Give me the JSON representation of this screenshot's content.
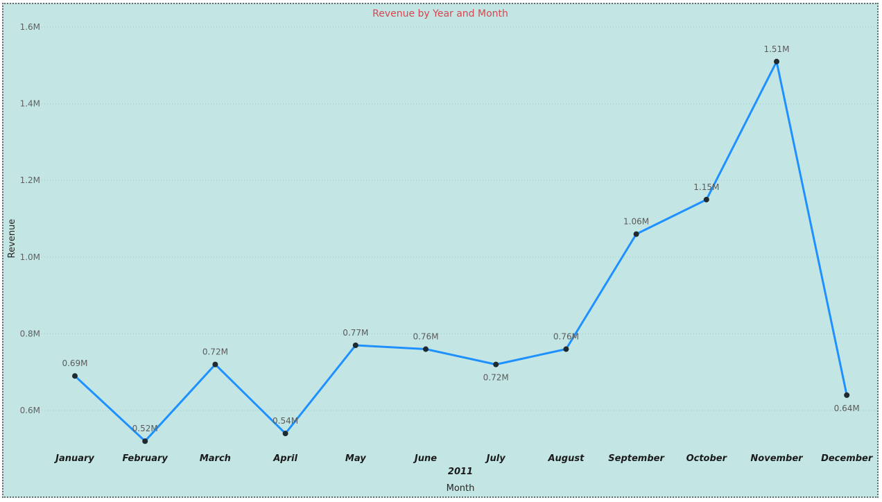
{
  "chart_data": {
    "type": "line",
    "title": "Revenue by Year and Month",
    "xlabel": "Month",
    "ylabel": "Revenue",
    "year_label": "2011",
    "categories": [
      "January",
      "February",
      "March",
      "April",
      "May",
      "June",
      "July",
      "August",
      "September",
      "October",
      "November",
      "December"
    ],
    "series": [
      {
        "values": [
          690000,
          520000,
          720000,
          540000,
          770000,
          760000,
          720000,
          760000,
          1060000,
          1150000,
          1510000,
          640000
        ],
        "labels": [
          "0.69M",
          "0.52M",
          "0.72M",
          "0.54M",
          "0.77M",
          "0.76M",
          "0.72M",
          "0.76M",
          "1.06M",
          "1.15M",
          "1.51M",
          "0.64M"
        ],
        "label_position": [
          "above",
          "above",
          "above",
          "above",
          "above",
          "above",
          "below",
          "above",
          "above",
          "above",
          "above",
          "below"
        ]
      }
    ],
    "y_ticks": [
      {
        "value": 600000,
        "label": "0.6M"
      },
      {
        "value": 800000,
        "label": "0.8M"
      },
      {
        "value": 1000000,
        "label": "1.0M"
      },
      {
        "value": 1200000,
        "label": "1.2M"
      },
      {
        "value": 1400000,
        "label": "1.4M"
      },
      {
        "value": 1600000,
        "label": "1.6M"
      }
    ],
    "ylim": [
      490000,
      1600000
    ],
    "grid": true,
    "colors": {
      "line": "#1e90ff",
      "marker": "#1f2a30",
      "title": "#d64550",
      "background": "#c3e6e4"
    }
  }
}
